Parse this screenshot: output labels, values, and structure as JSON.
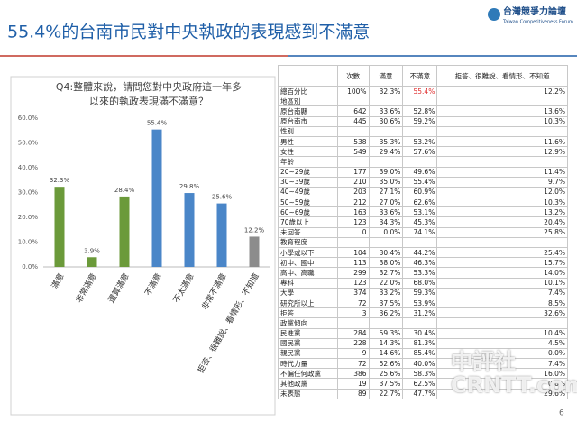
{
  "header": {
    "title": "55.4%的台南市民對中央執政的表現感到不滿意",
    "logo": "台灣競爭力論壇",
    "logo_sub": "Taiwan Competitiveness Forum"
  },
  "chart_data": {
    "type": "bar",
    "title": [
      "Q4:整體來說，請問您對中央政府這一年多",
      "以來的執政表現滿不滿意？"
    ],
    "categories": [
      "滿意",
      "非常滿意",
      "還算滿意",
      "不滿意",
      "不太滿意",
      "非常不滿意",
      "拒答、很難說、看情形、不知道"
    ],
    "values": [
      32.3,
      3.9,
      28.4,
      55.4,
      29.8,
      25.6,
      12.2
    ],
    "value_labels": [
      "32.3%",
      "3.9%",
      "28.4%",
      "55.4%",
      "29.8%",
      "25.6%",
      "12.2%"
    ],
    "colors": [
      "#6b9a3a",
      "#6b9a3a",
      "#6b9a3a",
      "#4a86c8",
      "#4a86c8",
      "#4a86c8",
      "#8c8c8c"
    ],
    "ylim": [
      0,
      60
    ],
    "yticks": [
      {
        "value": 0,
        "label": "0.0%"
      },
      {
        "value": 10,
        "label": "10.0%"
      },
      {
        "value": 20,
        "label": "20.0%"
      },
      {
        "value": 30,
        "label": "30.0%"
      },
      {
        "value": 40,
        "label": "40.0%"
      },
      {
        "value": 50,
        "label": "50.0%"
      },
      {
        "value": 60,
        "label": "60.0%"
      }
    ],
    "grid": false
  },
  "table": {
    "header": [
      "次數",
      "滿意",
      "不滿意",
      "拒答、很難說、看情形、不知道"
    ],
    "rows": [
      [
        "總百分比",
        "100%",
        "32.3%",
        "55.4%",
        "12.2%"
      ],
      [
        "地區別"
      ],
      [
        "原台南縣",
        "642",
        "33.6%",
        "52.8%",
        "13.6%"
      ],
      [
        "原台南市",
        "445",
        "30.6%",
        "59.2%",
        "10.3%"
      ],
      [
        "性別"
      ],
      [
        "男性",
        "538",
        "35.3%",
        "53.2%",
        "11.6%"
      ],
      [
        "女性",
        "549",
        "29.4%",
        "57.6%",
        "12.9%"
      ],
      [
        "年齡"
      ],
      [
        "20~29歲",
        "177",
        "39.0%",
        "49.6%",
        "11.4%"
      ],
      [
        "30~39歲",
        "210",
        "35.0%",
        "55.4%",
        "9.7%"
      ],
      [
        "40~49歲",
        "203",
        "27.1%",
        "60.9%",
        "12.0%"
      ],
      [
        "50~59歲",
        "212",
        "27.0%",
        "62.6%",
        "10.3%"
      ],
      [
        "60~69歲",
        "163",
        "33.6%",
        "53.1%",
        "13.2%"
      ],
      [
        "70歲以上",
        "123",
        "34.3%",
        "45.3%",
        "20.4%"
      ],
      [
        "未回答",
        "0",
        "0.0%",
        "74.1%",
        "25.8%"
      ],
      [
        "教育程度"
      ],
      [
        "小學或以下",
        "104",
        "30.4%",
        "44.2%",
        "25.4%"
      ],
      [
        "初中、國中",
        "113",
        "38.0%",
        "46.3%",
        "15.7%"
      ],
      [
        "高中、高職",
        "299",
        "32.7%",
        "53.3%",
        "14.0%"
      ],
      [
        "專科",
        "123",
        "22.0%",
        "68.0%",
        "10.1%"
      ],
      [
        "大學",
        "374",
        "33.2%",
        "59.3%",
        "7.4%"
      ],
      [
        "研究所以上",
        "72",
        "37.5%",
        "53.9%",
        "8.5%"
      ],
      [
        "拒答",
        "3",
        "36.2%",
        "31.2%",
        "32.6%"
      ],
      [
        "政黨傾向"
      ],
      [
        "民進黨",
        "284",
        "59.3%",
        "30.4%",
        "10.4%"
      ],
      [
        "國民黨",
        "228",
        "14.3%",
        "81.3%",
        "4.5%"
      ],
      [
        "親民黨",
        "9",
        "14.6%",
        "85.4%",
        "0.0%"
      ],
      [
        "時代力量",
        "72",
        "52.6%",
        "40.0%",
        "7.4%"
      ],
      [
        "不偏任何政黨",
        "386",
        "25.6%",
        "58.3%",
        "16.0%"
      ],
      [
        "其他政黨",
        "19",
        "37.5%",
        "62.5%",
        "0.0%"
      ],
      [
        "未表態",
        "89",
        "22.7%",
        "47.7%",
        "29.6%"
      ]
    ]
  },
  "watermark": [
    "中評社",
    "CRNTT.com"
  ],
  "page_number": "6"
}
